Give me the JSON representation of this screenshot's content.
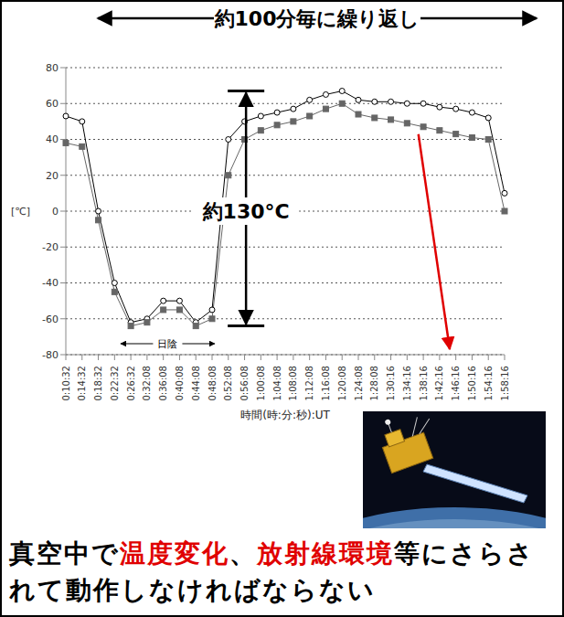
{
  "chart_data": {
    "type": "line",
    "x_label": "時間(時:分:秒):UT",
    "y_label": "[℃]",
    "categories": [
      "0:10:32",
      "0:14:32",
      "0:18:32",
      "0:22:32",
      "0:26:32",
      "0:32:08",
      "0:36:08",
      "0:40:08",
      "0:44:08",
      "0:48:08",
      "0:52:08",
      "0:56:08",
      "1:00:08",
      "1:04:08",
      "1:08:08",
      "1:12:08",
      "1:16:08",
      "1:20:08",
      "1:24:08",
      "1:28:08",
      "1:30:16",
      "1:34:16",
      "1:38:16",
      "1:42:16",
      "1:46:16",
      "1:50:16",
      "1:54:16",
      "1:58:16"
    ],
    "series": [
      {
        "color": "#000000",
        "marker": "circle",
        "values": [
          53,
          50,
          0,
          -40,
          -62,
          -60,
          -50,
          -50,
          -62,
          -55,
          40,
          50,
          53,
          55,
          57,
          62,
          65,
          67,
          62,
          61,
          61,
          60,
          60,
          58,
          57,
          55,
          52,
          10
        ]
      },
      {
        "color": "#666666",
        "marker": "square",
        "values": [
          38,
          36,
          -5,
          -45,
          -64,
          -62,
          -55,
          -55,
          -64,
          -60,
          20,
          40,
          45,
          48,
          50,
          53,
          57,
          60,
          54,
          52,
          51,
          49,
          47,
          45,
          43,
          41,
          40,
          0
        ]
      }
    ],
    "ylim": [
      -80,
      80
    ],
    "yticks": [
      -80,
      -60,
      -40,
      -20,
      0,
      20,
      40,
      60,
      80
    ],
    "grid": true,
    "annotations": {
      "period": "約100分毎に繰り返し",
      "amplitude": "約130°C",
      "shade": "日陰"
    },
    "caption": [
      {
        "text": "真空中で",
        "color": "#000000"
      },
      {
        "text": "温度変化",
        "color": "#e00000"
      },
      {
        "text": "、",
        "color": "#000000"
      },
      {
        "text": "放射線環境",
        "color": "#e00000"
      },
      {
        "text": "等にさらされて動作しなければならない",
        "color": "#000000"
      }
    ]
  }
}
